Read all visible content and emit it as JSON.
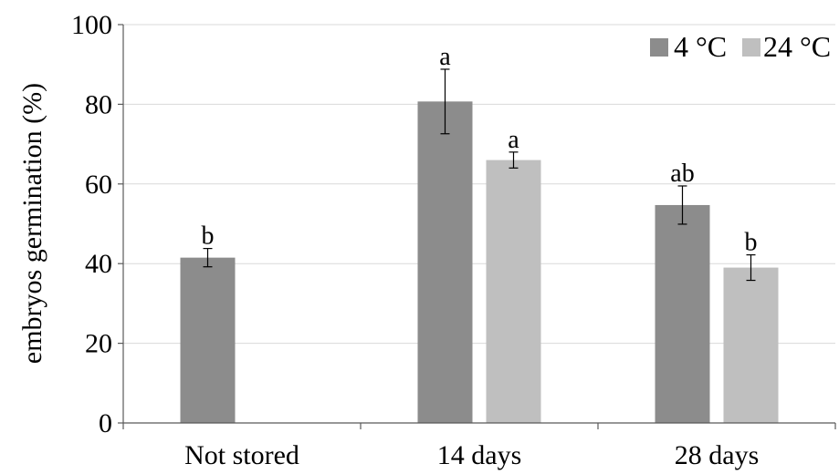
{
  "chart_data": {
    "type": "bar",
    "title": "",
    "xlabel": "",
    "ylabel": "embryos germination (%)",
    "ylim": [
      0,
      100
    ],
    "yticks": [
      "0",
      "20",
      "40",
      "60",
      "80",
      "100"
    ],
    "grid": true,
    "legend_position": "top-right",
    "categories": [
      "Not stored",
      "14 days",
      "28 days"
    ],
    "series": [
      {
        "name": "4 °C",
        "color": "#8c8c8c",
        "values": [
          41.5,
          80.7,
          54.7
        ],
        "errors": [
          2.3,
          8.1,
          4.8
        ],
        "letters": [
          "b",
          "a",
          "ab"
        ]
      },
      {
        "name": "24 °C",
        "color": "#bfbfbf",
        "values": [
          null,
          66.0,
          39.0
        ],
        "errors": [
          null,
          2.0,
          3.2
        ],
        "letters": [
          null,
          "a",
          "b"
        ]
      }
    ]
  }
}
